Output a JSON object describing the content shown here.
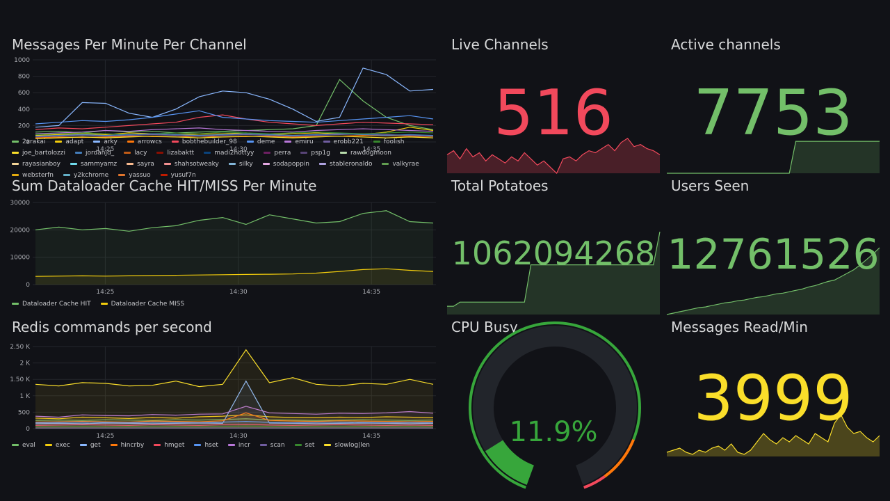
{
  "time_ticks": [
    "14:25",
    "14:30",
    "14:35"
  ],
  "panels": {
    "messages": {
      "title": "Messages Per Minute Per Channel",
      "y_ticks": [
        "1000",
        "800",
        "600",
        "400",
        "200",
        "0"
      ]
    },
    "dataloader": {
      "title": "Sum Dataloader Cache HIT/MISS Per Minute",
      "y_ticks": [
        "30000",
        "20000",
        "10000",
        "0"
      ]
    },
    "redis": {
      "title": "Redis commands per second",
      "y_ticks": [
        "2.50 K",
        "2 K",
        "1.50 K",
        "1 K",
        "500",
        "0"
      ]
    },
    "live_channels": {
      "title": "Live Channels",
      "value": "516",
      "color": "#f2495c"
    },
    "active_channels": {
      "title": "Active channels",
      "value": "7753",
      "color": "#73bf69"
    },
    "total_potatoes": {
      "title": "Total Potatoes",
      "value": "1062094268",
      "color": "#73bf69"
    },
    "users_seen": {
      "title": "Users Seen",
      "value": "12761526",
      "color": "#73bf69"
    },
    "cpu_busy": {
      "title": "CPU Busy",
      "value": "11.9%",
      "percent": 11.9,
      "color": "#37a63b"
    },
    "messages_read": {
      "title": "Messages Read/Min",
      "value": "3999",
      "color": "#fade2a"
    }
  },
  "chart_data": [
    {
      "type": "line",
      "title": "Messages Per Minute Per Channel",
      "ylim": [
        0,
        1000
      ],
      "x": [
        "14:21",
        "14:22",
        "14:23",
        "14:24",
        "14:25",
        "14:26",
        "14:27",
        "14:28",
        "14:29",
        "14:30",
        "14:31",
        "14:32",
        "14:33",
        "14:34",
        "14:35",
        "14:36",
        "14:37",
        "14:38"
      ],
      "series": [
        {
          "name": "2xrakai",
          "color": "#73bf69",
          "values": [
            120,
            130,
            110,
            140,
            120,
            130,
            110,
            120,
            130,
            140,
            150,
            160,
            200,
            760,
            500,
            300,
            200,
            150
          ]
        },
        {
          "name": "adapt",
          "color": "#f2cc0c",
          "values": [
            80,
            90,
            100,
            90,
            110,
            100,
            90,
            95,
            100,
            110,
            90,
            100,
            110,
            100,
            90,
            120,
            180,
            140
          ]
        },
        {
          "name": "arky",
          "color": "#8ab8ff",
          "values": [
            180,
            200,
            480,
            470,
            350,
            300,
            400,
            550,
            620,
            600,
            520,
            400,
            250,
            300,
            900,
            820,
            620,
            640
          ]
        },
        {
          "name": "arrowcs",
          "color": "#ff780a",
          "values": [
            50,
            60,
            55,
            60,
            70,
            65,
            60,
            70,
            60,
            65,
            70,
            60,
            65,
            70,
            80,
            75,
            70,
            65
          ]
        },
        {
          "name": "bobthebuilder_98",
          "color": "#f2495c",
          "values": [
            150,
            170,
            160,
            180,
            200,
            220,
            240,
            300,
            330,
            280,
            240,
            220,
            200,
            220,
            240,
            230,
            220,
            210
          ]
        },
        {
          "name": "deme",
          "color": "#5794f2",
          "values": [
            220,
            240,
            260,
            250,
            270,
            300,
            340,
            380,
            300,
            280,
            260,
            250,
            240,
            260,
            280,
            300,
            320,
            280
          ]
        },
        {
          "name": "emiru",
          "color": "#b877d9",
          "values": [
            100,
            110,
            120,
            140,
            130,
            150,
            160,
            170,
            150,
            140,
            130,
            120,
            140,
            150,
            160,
            150,
            140,
            130
          ]
        },
        {
          "name": "erobb221",
          "color": "#705da0",
          "values": [
            60,
            70,
            80,
            70,
            80,
            90,
            80,
            70,
            80,
            90,
            80,
            70,
            80,
            90,
            100,
            90,
            80,
            70
          ]
        },
        {
          "name": "foolish",
          "color": "#37872d",
          "values": [
            90,
            100,
            110,
            100,
            90,
            100,
            110,
            100,
            120,
            110,
            100,
            110,
            120,
            110,
            100,
            110,
            120,
            110
          ]
        },
        {
          "name": "joe_bartolozzi",
          "color": "#fade2a",
          "values": [
            40,
            50,
            60,
            50,
            60,
            70,
            60,
            50,
            60,
            70,
            60,
            50,
            60,
            70,
            60,
            50,
            60,
            50
          ]
        },
        {
          "name": "jordanjd_",
          "color": "#447ebc",
          "values": [
            70,
            80,
            90,
            80,
            90,
            100,
            90,
            80,
            90,
            100,
            90,
            80,
            90,
            100,
            90,
            80,
            90,
            80
          ]
        }
      ]
    },
    {
      "type": "area",
      "title": "Sum Dataloader Cache HIT/MISS Per Minute",
      "ylim": [
        0,
        30000
      ],
      "x": [
        "14:21",
        "14:22",
        "14:23",
        "14:24",
        "14:25",
        "14:26",
        "14:27",
        "14:28",
        "14:29",
        "14:30",
        "14:31",
        "14:32",
        "14:33",
        "14:34",
        "14:35",
        "14:36",
        "14:37",
        "14:38"
      ],
      "series": [
        {
          "name": "Dataloader Cache HIT",
          "color": "#73bf69",
          "values": [
            20000,
            21000,
            20000,
            20500,
            19500,
            20800,
            21500,
            23500,
            24500,
            22000,
            25500,
            24000,
            22500,
            23000,
            26000,
            27000,
            23000,
            22500
          ]
        },
        {
          "name": "Dataloader Cache MISS",
          "color": "#f2cc0c",
          "values": [
            3000,
            3100,
            3200,
            3100,
            3200,
            3300,
            3400,
            3500,
            3600,
            3700,
            3800,
            3900,
            4200,
            4800,
            5500,
            5800,
            5200,
            4800
          ]
        }
      ]
    },
    {
      "type": "area",
      "title": "Redis commands per second",
      "ylim": [
        0,
        2500
      ],
      "x": [
        "14:21",
        "14:22",
        "14:23",
        "14:24",
        "14:25",
        "14:26",
        "14:27",
        "14:28",
        "14:29",
        "14:30",
        "14:31",
        "14:32",
        "14:33",
        "14:34",
        "14:35",
        "14:36",
        "14:37",
        "14:38"
      ],
      "series": [
        {
          "name": "eval",
          "color": "#73bf69",
          "values": [
            250,
            260,
            250,
            270,
            260,
            250,
            270,
            260,
            280,
            300,
            270,
            260,
            250,
            260,
            270,
            260,
            250,
            260
          ]
        },
        {
          "name": "exec",
          "color": "#f2cc0c",
          "values": [
            320,
            300,
            350,
            330,
            310,
            340,
            320,
            360,
            380,
            420,
            360,
            340,
            330,
            350,
            340,
            360,
            350,
            330
          ]
        },
        {
          "name": "get",
          "color": "#8ab8ff",
          "values": [
            150,
            160,
            150,
            170,
            160,
            150,
            160,
            170,
            160,
            1450,
            170,
            160,
            150,
            160,
            170,
            160,
            150,
            160
          ]
        },
        {
          "name": "hincrby",
          "color": "#ff780a",
          "values": [
            200,
            210,
            220,
            210,
            200,
            230,
            220,
            210,
            240,
            480,
            250,
            230,
            220,
            240,
            230,
            220,
            210,
            220
          ]
        },
        {
          "name": "hmget",
          "color": "#f2495c",
          "values": [
            100,
            110,
            120,
            110,
            100,
            120,
            110,
            100,
            120,
            130,
            110,
            100,
            110,
            120,
            110,
            100,
            110,
            100
          ]
        },
        {
          "name": "hset",
          "color": "#5794f2",
          "values": [
            180,
            190,
            200,
            190,
            180,
            200,
            190,
            180,
            200,
            220,
            190,
            180,
            190,
            200,
            190,
            180,
            190,
            180
          ]
        },
        {
          "name": "incr",
          "color": "#b877d9",
          "values": [
            380,
            350,
            420,
            400,
            390,
            430,
            410,
            440,
            450,
            680,
            480,
            460,
            440,
            470,
            460,
            480,
            520,
            470
          ]
        },
        {
          "name": "scan",
          "color": "#705da0",
          "values": [
            20,
            20,
            20,
            20,
            20,
            20,
            20,
            20,
            20,
            20,
            20,
            20,
            20,
            20,
            20,
            20,
            20,
            20
          ]
        },
        {
          "name": "set",
          "color": "#37872d",
          "values": [
            60,
            60,
            70,
            60,
            70,
            60,
            70,
            60,
            70,
            80,
            70,
            60,
            70,
            60,
            70,
            60,
            70,
            60
          ]
        },
        {
          "name": "slowlog|len",
          "color": "#fade2a",
          "values": [
            1350,
            1300,
            1400,
            1380,
            1300,
            1320,
            1450,
            1280,
            1350,
            2400,
            1400,
            1550,
            1350,
            1300,
            1380,
            1350,
            1500,
            1350
          ]
        }
      ]
    }
  ],
  "legends": {
    "messages": [
      {
        "name": "2xrakai",
        "color": "#73bf69"
      },
      {
        "name": "adapt",
        "color": "#f2cc0c"
      },
      {
        "name": "arky",
        "color": "#8ab8ff"
      },
      {
        "name": "arrowcs",
        "color": "#ff780a"
      },
      {
        "name": "bobthebuilder_98",
        "color": "#f2495c"
      },
      {
        "name": "deme",
        "color": "#5794f2"
      },
      {
        "name": "emiru",
        "color": "#b877d9"
      },
      {
        "name": "erobb221",
        "color": "#705da0"
      },
      {
        "name": "foolish",
        "color": "#37872d"
      },
      {
        "name": "joe_bartolozzi",
        "color": "#fade2a"
      },
      {
        "name": "jordanjd_",
        "color": "#447ebc"
      },
      {
        "name": "lacy",
        "color": "#c15c17"
      },
      {
        "name": "lizabaktt",
        "color": "#890f02"
      },
      {
        "name": "madi2hottyy",
        "color": "#0a437c"
      },
      {
        "name": "perra",
        "color": "#6d1f62"
      },
      {
        "name": "psp1g",
        "color": "#584477"
      },
      {
        "name": "rawdogmoon",
        "color": "#b7dbab"
      },
      {
        "name": "rayasianboy",
        "color": "#f4d598"
      },
      {
        "name": "sammyamz",
        "color": "#70dbed"
      },
      {
        "name": "sayra",
        "color": "#f9ba8f"
      },
      {
        "name": "shahsotweaky",
        "color": "#f29191"
      },
      {
        "name": "silky",
        "color": "#82b5d8"
      },
      {
        "name": "sodapoppin",
        "color": "#e5a8e2"
      },
      {
        "name": "stableronaldo",
        "color": "#aea2e0"
      },
      {
        "name": "valkyrae",
        "color": "#629e51"
      },
      {
        "name": "websterfn",
        "color": "#e5ac0e"
      },
      {
        "name": "y2kchrome",
        "color": "#64b0c8"
      },
      {
        "name": "yassuo",
        "color": "#e0752d"
      },
      {
        "name": "yusuf7n",
        "color": "#bf1b00"
      }
    ],
    "dataloader": [
      {
        "name": "Dataloader Cache HIT",
        "color": "#73bf69"
      },
      {
        "name": "Dataloader Cache MISS",
        "color": "#f2cc0c"
      }
    ],
    "redis": [
      {
        "name": "eval",
        "color": "#73bf69"
      },
      {
        "name": "exec",
        "color": "#f2cc0c"
      },
      {
        "name": "get",
        "color": "#8ab8ff"
      },
      {
        "name": "hincrby",
        "color": "#ff780a"
      },
      {
        "name": "hmget",
        "color": "#f2495c"
      },
      {
        "name": "hset",
        "color": "#5794f2"
      },
      {
        "name": "incr",
        "color": "#b877d9"
      },
      {
        "name": "scan",
        "color": "#705da0"
      },
      {
        "name": "set",
        "color": "#37872d"
      },
      {
        "name": "slowlog|len",
        "color": "#fade2a"
      }
    ]
  },
  "sparklines": {
    "live_channels": [
      0.45,
      0.55,
      0.35,
      0.6,
      0.4,
      0.5,
      0.3,
      0.45,
      0.35,
      0.25,
      0.4,
      0.3,
      0.5,
      0.35,
      0.2,
      0.3,
      0.15,
      0.0,
      0.35,
      0.4,
      0.3,
      0.45,
      0.55,
      0.5,
      0.6,
      0.7,
      0.55,
      0.75,
      0.85,
      0.65,
      0.7,
      0.6,
      0.55,
      0.45
    ],
    "active_channels": [
      0,
      0,
      0,
      0,
      0,
      0,
      0,
      0,
      0,
      0,
      0,
      0,
      0,
      0,
      0,
      0,
      0,
      0,
      0,
      0,
      0.9,
      0.9,
      0.9,
      0.9,
      0.9,
      0.9,
      0.9,
      0.9,
      0.9,
      0.9,
      0.9,
      0.9,
      0.9,
      0.9
    ],
    "total_potatoes": [
      0.1,
      0.1,
      0.15,
      0.15,
      0.15,
      0.15,
      0.15,
      0.15,
      0.15,
      0.15,
      0.15,
      0.15,
      0.15,
      0.6,
      0.6,
      0.6,
      0.6,
      0.6,
      0.6,
      0.6,
      0.6,
      0.6,
      0.6,
      0.6,
      0.6,
      0.6,
      0.6,
      0.6,
      0.6,
      0.6,
      0.6,
      0.6,
      0.6,
      1.0
    ],
    "users_seen": [
      0,
      0.02,
      0.04,
      0.06,
      0.08,
      0.1,
      0.11,
      0.13,
      0.15,
      0.17,
      0.18,
      0.2,
      0.21,
      0.23,
      0.25,
      0.26,
      0.28,
      0.3,
      0.31,
      0.33,
      0.35,
      0.37,
      0.4,
      0.42,
      0.45,
      0.48,
      0.5,
      0.55,
      0.6,
      0.65,
      0.72,
      0.8,
      0.88,
      0.97
    ],
    "messages_read": [
      0.1,
      0.15,
      0.2,
      0.1,
      0.05,
      0.15,
      0.1,
      0.2,
      0.25,
      0.15,
      0.3,
      0.1,
      0.05,
      0.15,
      0.35,
      0.55,
      0.4,
      0.3,
      0.45,
      0.35,
      0.5,
      0.4,
      0.3,
      0.55,
      0.45,
      0.35,
      0.8,
      1.0,
      0.7,
      0.55,
      0.6,
      0.45,
      0.35,
      0.5
    ]
  }
}
